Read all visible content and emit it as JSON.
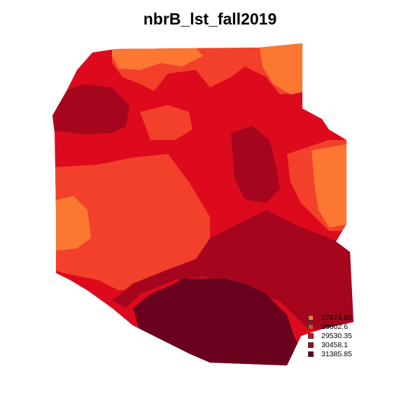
{
  "title": "nbrB_lst_fall2019",
  "legend": {
    "items": [
      {
        "label": "27674.85",
        "color": "#FB7732"
      },
      {
        "label": "28602.6",
        "color": "#F2402B"
      },
      {
        "label": "29530.35",
        "color": "#DD0A1D"
      },
      {
        "label": "30458.1",
        "color": "#A5061E"
      },
      {
        "label": "31385.85",
        "color": "#68001E"
      }
    ]
  }
}
